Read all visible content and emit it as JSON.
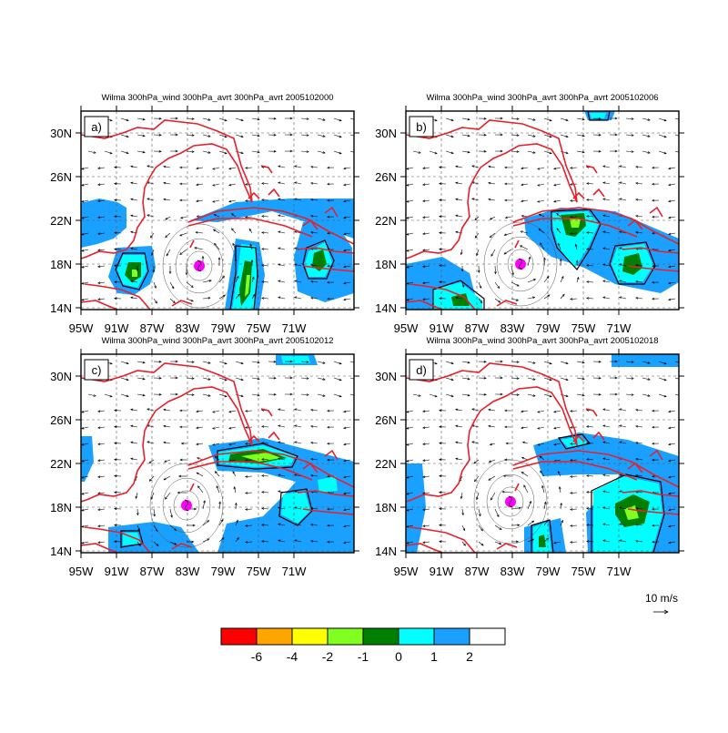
{
  "panels": [
    {
      "title": "Wilma 300hPa_wind 300hPa_avrt 300hPa_avrt 2005102000",
      "label": "a)"
    },
    {
      "title": "Wilma 300hPa_wind 300hPa_avrt 300hPa_avrt 2005102006",
      "label": "b)"
    },
    {
      "title": "Wilma 300hPa_wind 300hPa_avrt 300hPa_avrt 2005102012",
      "label": "c)"
    },
    {
      "title": "Wilma 300hPa_wind 300hPa_avrt 300hPa_avrt 2005102018",
      "label": "d)"
    }
  ],
  "lon_ticks": [
    "95W",
    "91W",
    "87W",
    "83W",
    "79W",
    "75W",
    "71W"
  ],
  "lat_ticks": [
    "30N",
    "26N",
    "22N",
    "18N",
    "14N"
  ],
  "vector_ref": {
    "label": "10 m/s"
  },
  "colorbar": {
    "colors": [
      "#ff0000",
      "#ffa500",
      "#ffff00",
      "#80ff20",
      "#007f00",
      "#00ffff",
      "#1aa0ff",
      "#ffffff"
    ],
    "labels": [
      "-6",
      "-4",
      "-2",
      "-1",
      "0",
      "1",
      "2"
    ]
  },
  "colors": {
    "coast": "#e8202a",
    "storm_marker": "#ff00ff",
    "contour": "#000000"
  }
}
